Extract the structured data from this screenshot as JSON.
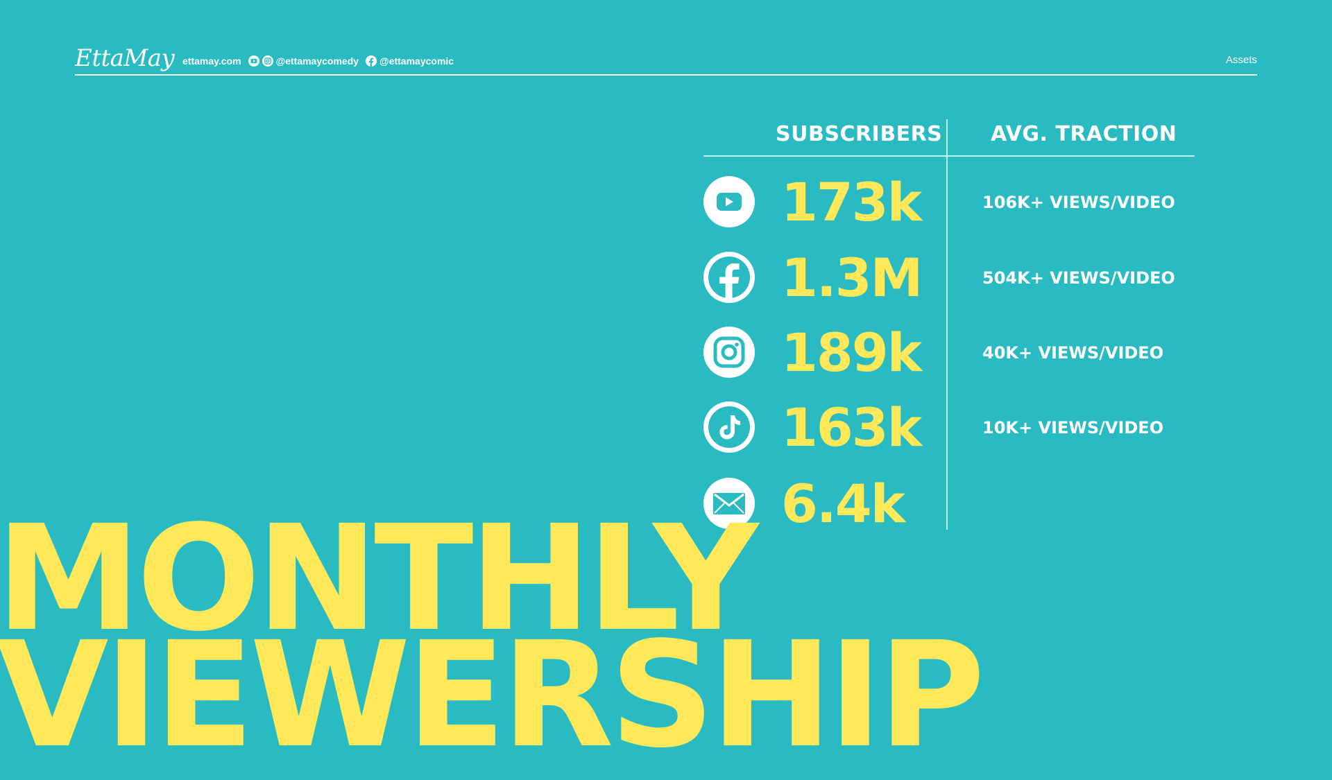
{
  "header": {
    "logo": "EttaMay",
    "website": "ettamay.com",
    "socials": [
      {
        "icons": [
          "youtube-icon",
          "instagram-icon"
        ],
        "handle": "@ettamaycomedy"
      },
      {
        "icons": [
          "facebook-icon"
        ],
        "handle": "@ettamaycomic"
      }
    ],
    "right_label": "Assets"
  },
  "table": {
    "col_subscribers": "SUBSCRIBERS",
    "col_traction": "AVG. TRACTION",
    "rows": [
      {
        "icon": "youtube-icon",
        "value": "173k",
        "traction": "106K+ VIEWS/VIDEO"
      },
      {
        "icon": "facebook-icon",
        "value": "1.3M",
        "traction": "504K+ VIEWS/VIDEO"
      },
      {
        "icon": "instagram-icon",
        "value": "189k",
        "traction": "40K+ VIEWS/VIDEO"
      },
      {
        "icon": "tiktok-icon",
        "value": "163k",
        "traction": "10K+ VIEWS/VIDEO"
      },
      {
        "icon": "email-icon",
        "value": "6.4k",
        "traction": ""
      }
    ]
  },
  "title": {
    "line1": "MONTHLY",
    "line2": "VIEWERSHIP"
  },
  "colors": {
    "background": "#29BBC1",
    "accent_yellow": "#FFE95B",
    "white": "#FFFFFF",
    "rule": "#BFF6F8"
  }
}
